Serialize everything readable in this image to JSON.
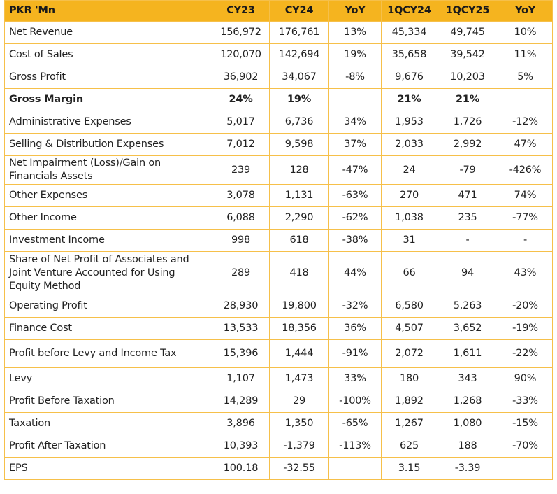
{
  "table": {
    "header": [
      "PKR 'Mn",
      "CY23",
      "CY24",
      "YoY",
      "1QCY24",
      "1QCY25",
      "YoY"
    ],
    "rows": [
      [
        "Net Revenue",
        "156,972",
        "176,761",
        "13%",
        "45,334",
        "49,745",
        "10%"
      ],
      [
        "Cost of Sales",
        "120,070",
        "142,694",
        "19%",
        "35,658",
        "39,542",
        "11%"
      ],
      [
        "Gross Profit",
        "36,902",
        "34,067",
        "-8%",
        "9,676",
        "10,203",
        "5%"
      ],
      [
        "Gross Margin",
        "24%",
        "19%",
        null,
        "21%",
        "21%",
        null
      ],
      [
        "Administrative Expenses",
        "5,017",
        "6,736",
        "34%",
        "1,953",
        "1,726",
        "-12%"
      ],
      [
        "Selling & Distribution Expenses",
        "7,012",
        "9,598",
        "37%",
        "2,033",
        "2,992",
        "47%"
      ],
      [
        "Net Impairment (Loss)/Gain on Financials Assets",
        "239",
        "128",
        "-47%",
        "24",
        "-79",
        "-426%"
      ],
      [
        "Other Expenses",
        "3,078",
        "1,131",
        "-63%",
        "270",
        "471",
        "74%"
      ],
      [
        "Other Income",
        "6,088",
        "2,290",
        "-62%",
        "1,038",
        "235",
        "-77%"
      ],
      [
        "Investment Income",
        "998",
        "618",
        "-38%",
        "31",
        "-",
        "-"
      ],
      [
        "Share of Net Profit of Associates and Joint Venture Accounted for Using Equity Method",
        "289",
        "418",
        "44%",
        "66",
        "94",
        "43%"
      ],
      [
        "Operating Profit",
        "28,930",
        "19,800",
        "-32%",
        "6,580",
        "5,263",
        "-20%"
      ],
      [
        "Finance Cost",
        "13,533",
        "18,356",
        "36%",
        "4,507",
        "3,652",
        "-19%"
      ],
      [
        "Profit before Levy and Income Tax",
        "15,396",
        "1,444",
        "-91%",
        "2,072",
        "1,611",
        "-22%"
      ],
      [
        "Levy",
        "1,107",
        "1,473",
        "33%",
        "180",
        "343",
        "90%"
      ],
      [
        "Profit Before Taxation",
        "14,289",
        "29",
        "-100%",
        "1,892",
        "1,268",
        "-33%"
      ],
      [
        "Taxation",
        "3,896",
        "1,350",
        "-65%",
        "1,267",
        "1,080",
        "-15%"
      ],
      [
        "Profit After Taxation",
        "10,393",
        "-1,379",
        "-113%",
        "625",
        "188",
        "-70%"
      ],
      [
        "EPS",
        "100.18",
        "-32.55",
        null,
        "3.15",
        "-3.39",
        null
      ]
    ]
  }
}
